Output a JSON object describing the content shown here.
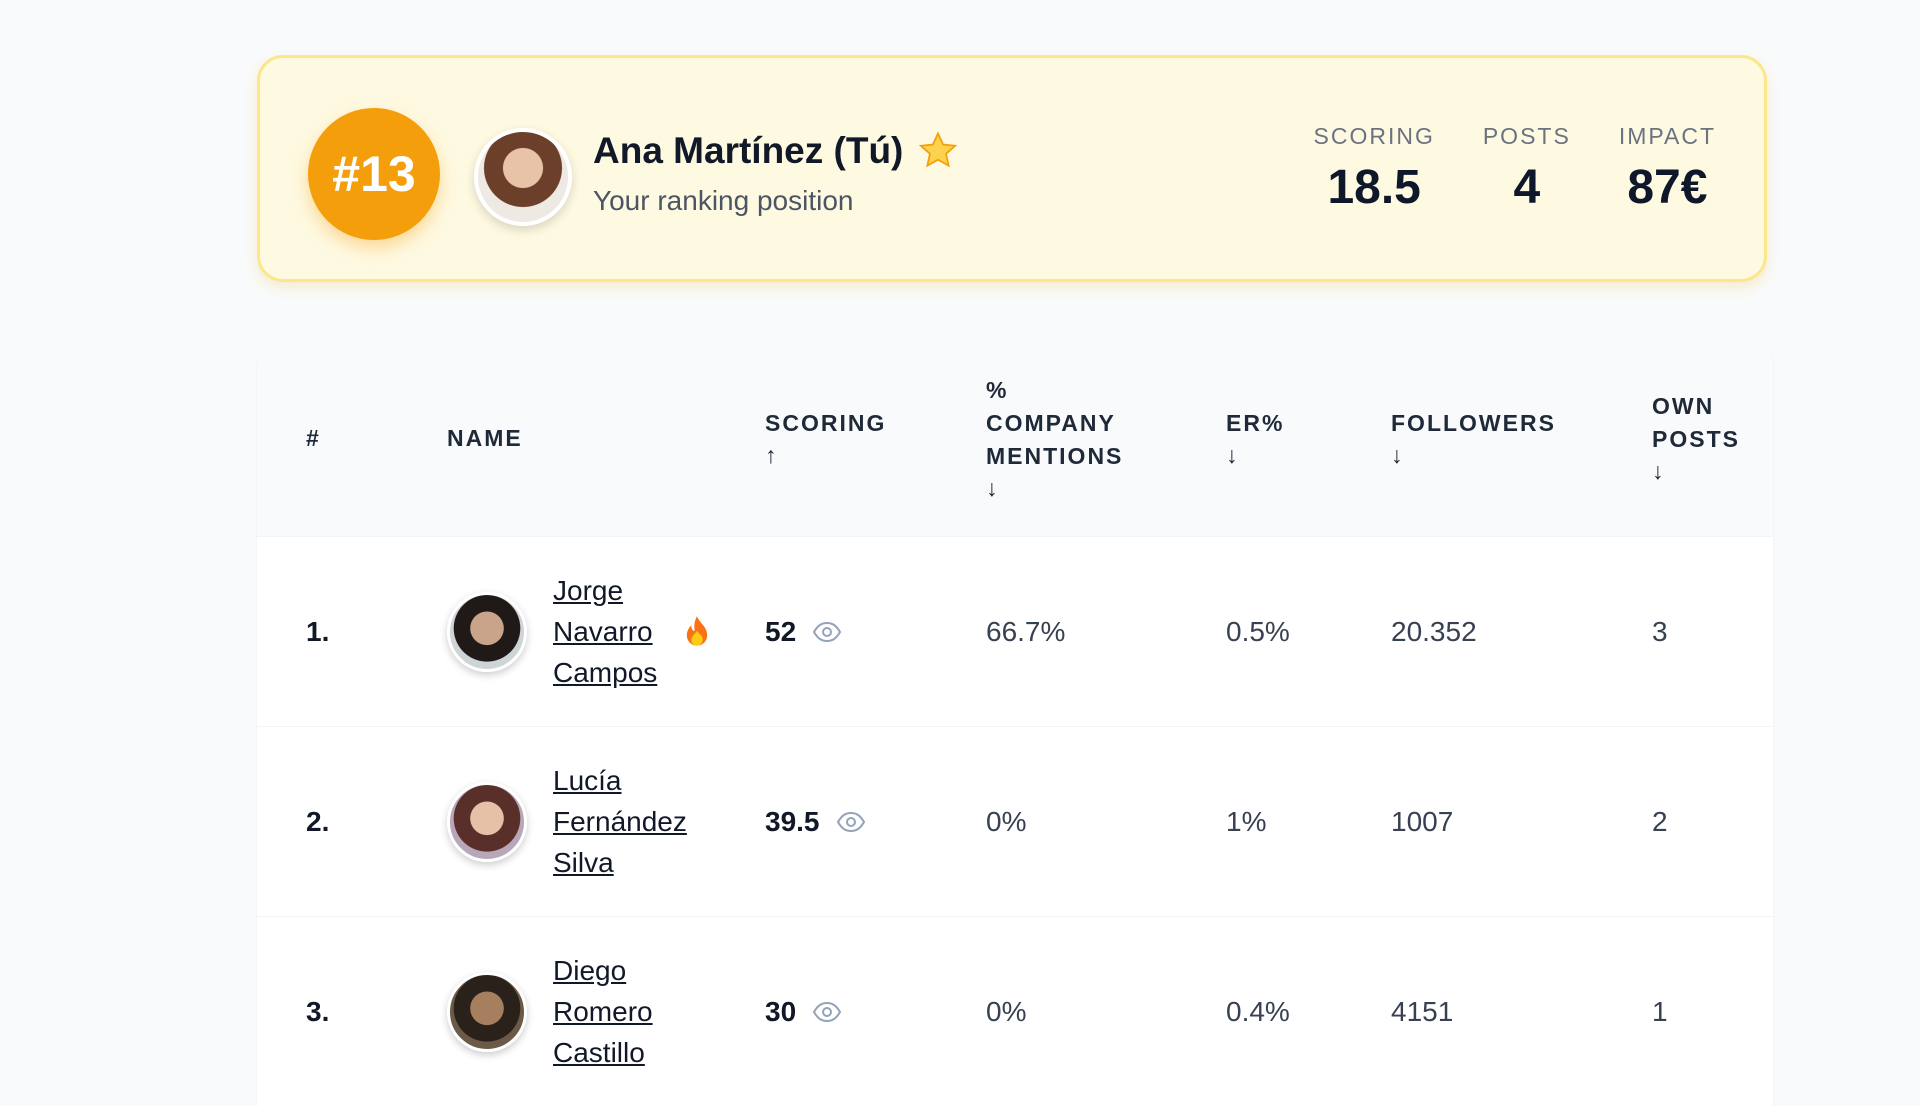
{
  "header": {
    "rank": "#13",
    "name": "Ana Martínez (Tú)",
    "subtitle": "Your ranking position",
    "stats": [
      {
        "label": "SCORING",
        "value": 18.5
      },
      {
        "label": "POSTS",
        "value": 4
      },
      {
        "label": "IMPACT",
        "value": "87€"
      }
    ]
  },
  "table": {
    "columns": [
      {
        "label": "#"
      },
      {
        "label": "NAME"
      },
      {
        "label": "SCORING",
        "sort": "↑"
      },
      {
        "label": "% COMPANY MENTIONS",
        "sort": "↓"
      },
      {
        "label": "ER%",
        "sort": "↓"
      },
      {
        "label": "FOLLOWERS",
        "sort": "↓"
      },
      {
        "label": "OWN POSTS",
        "sort": "↓"
      }
    ],
    "rows": [
      [
        "1.",
        "Jorge Navarro Campos",
        52,
        "66.7%",
        "0.5%",
        "20.352",
        3
      ],
      [
        "2.",
        "Lucía Fernández Silva",
        39.5,
        "0%",
        "1%",
        1007,
        2
      ],
      [
        "3.",
        "Diego Romero Castillo",
        30,
        "0%",
        "0.4%",
        4151,
        1
      ]
    ]
  }
}
